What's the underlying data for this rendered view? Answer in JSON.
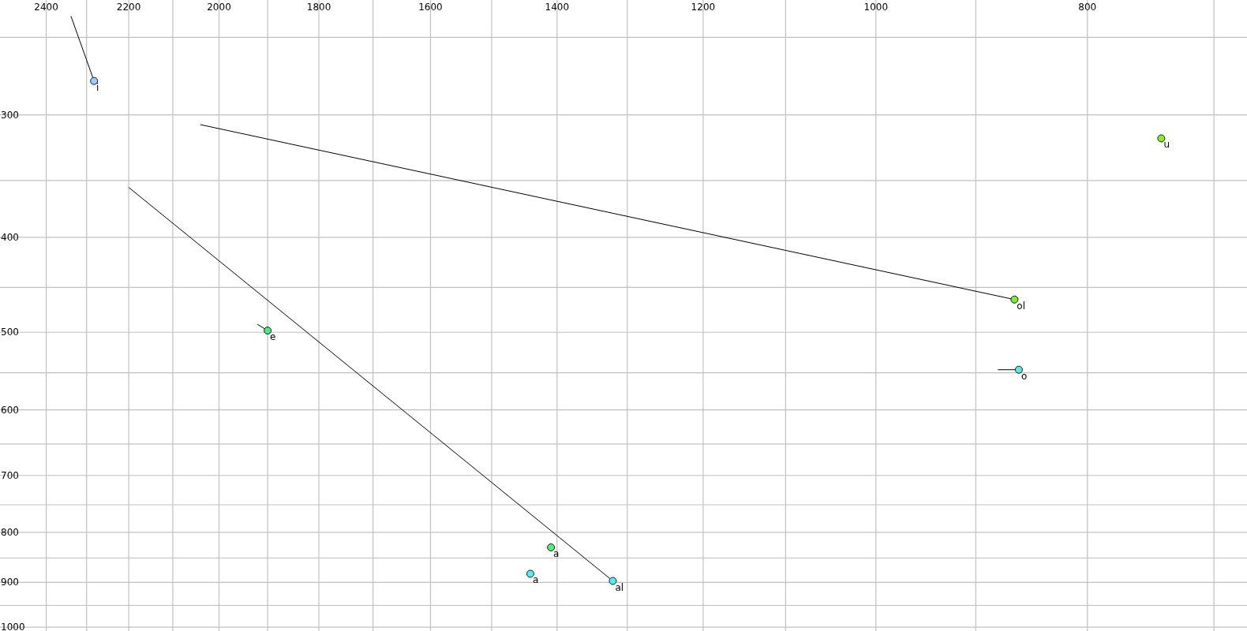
{
  "chart_data": {
    "type": "scatter",
    "log": "xy",
    "grid": true,
    "marker": "circle",
    "xlim": [
      2520,
      676
    ],
    "ylim": [
      1009,
      229
    ],
    "xticks": [
      2400,
      {
        "value": 2300,
        "label": null
      },
      2200,
      {
        "value": 2100,
        "label": null
      },
      2000,
      {
        "value": 1900,
        "label": null
      },
      1800,
      {
        "value": 1700,
        "label": null
      },
      1600,
      {
        "value": 1500,
        "label": null
      },
      1400,
      {
        "value": 1300,
        "label": null
      },
      1200,
      {
        "value": 1100,
        "label": null
      },
      1000,
      {
        "value": 900,
        "label": null
      },
      800,
      {
        "value": 700,
        "label": null
      }
    ],
    "yticks": [
      {
        "value": 250,
        "label": null
      },
      300,
      {
        "value": 350,
        "label": null
      },
      400,
      {
        "value": 450,
        "label": null
      },
      500,
      {
        "value": 550,
        "label": null
      },
      600,
      {
        "value": 650,
        "label": null
      },
      700,
      {
        "value": 750,
        "label": null
      },
      800,
      {
        "value": 850,
        "label": null
      },
      900,
      {
        "value": 950,
        "label": null
      },
      1000
    ],
    "series": [
      {
        "type": "line",
        "marker": "none",
        "color": "#000000",
        "x": [
          2338,
          2282
        ],
        "values": [
          238,
          277
        ]
      },
      {
        "type": "line",
        "marker": "none",
        "color": "#000000",
        "x": [
          2039,
          864
        ],
        "values": [
          307,
          463
        ]
      },
      {
        "type": "line",
        "marker": "none",
        "color": "#000000",
        "x": [
          1920,
          1900
        ],
        "values": [
          491,
          498
        ]
      },
      {
        "type": "line",
        "marker": "none",
        "color": "#000000",
        "x": [
          879,
          860
        ],
        "values": [
          546,
          546
        ]
      },
      {
        "type": "line",
        "marker": "none",
        "color": "#000000",
        "x": [
          2199,
          1320
        ],
        "values": [
          356,
          897
        ]
      },
      {
        "name": "i",
        "color": "#99ccff",
        "x": [
          2282
        ],
        "values": [
          277
        ]
      },
      {
        "name": "u",
        "color": "#88ee22",
        "x": [
          740
        ],
        "values": [
          317
        ]
      },
      {
        "name": "ol",
        "color": "#77ee33",
        "x": [
          864
        ],
        "values": [
          463
        ]
      },
      {
        "name": "e",
        "color": "#44ee77",
        "x": [
          1900
        ],
        "values": [
          498
        ]
      },
      {
        "name": "o",
        "color": "#55eedd",
        "x": [
          860
        ],
        "values": [
          546
        ]
      },
      {
        "name": "a",
        "color": "#55ee77",
        "x": [
          1409
        ],
        "values": [
          829
        ]
      },
      {
        "name": "a",
        "color": "#55eeee",
        "x": [
          1440
        ],
        "values": [
          882
        ]
      },
      {
        "name": "al",
        "color": "#55eeee",
        "x": [
          1320
        ],
        "values": [
          897
        ]
      }
    ]
  }
}
